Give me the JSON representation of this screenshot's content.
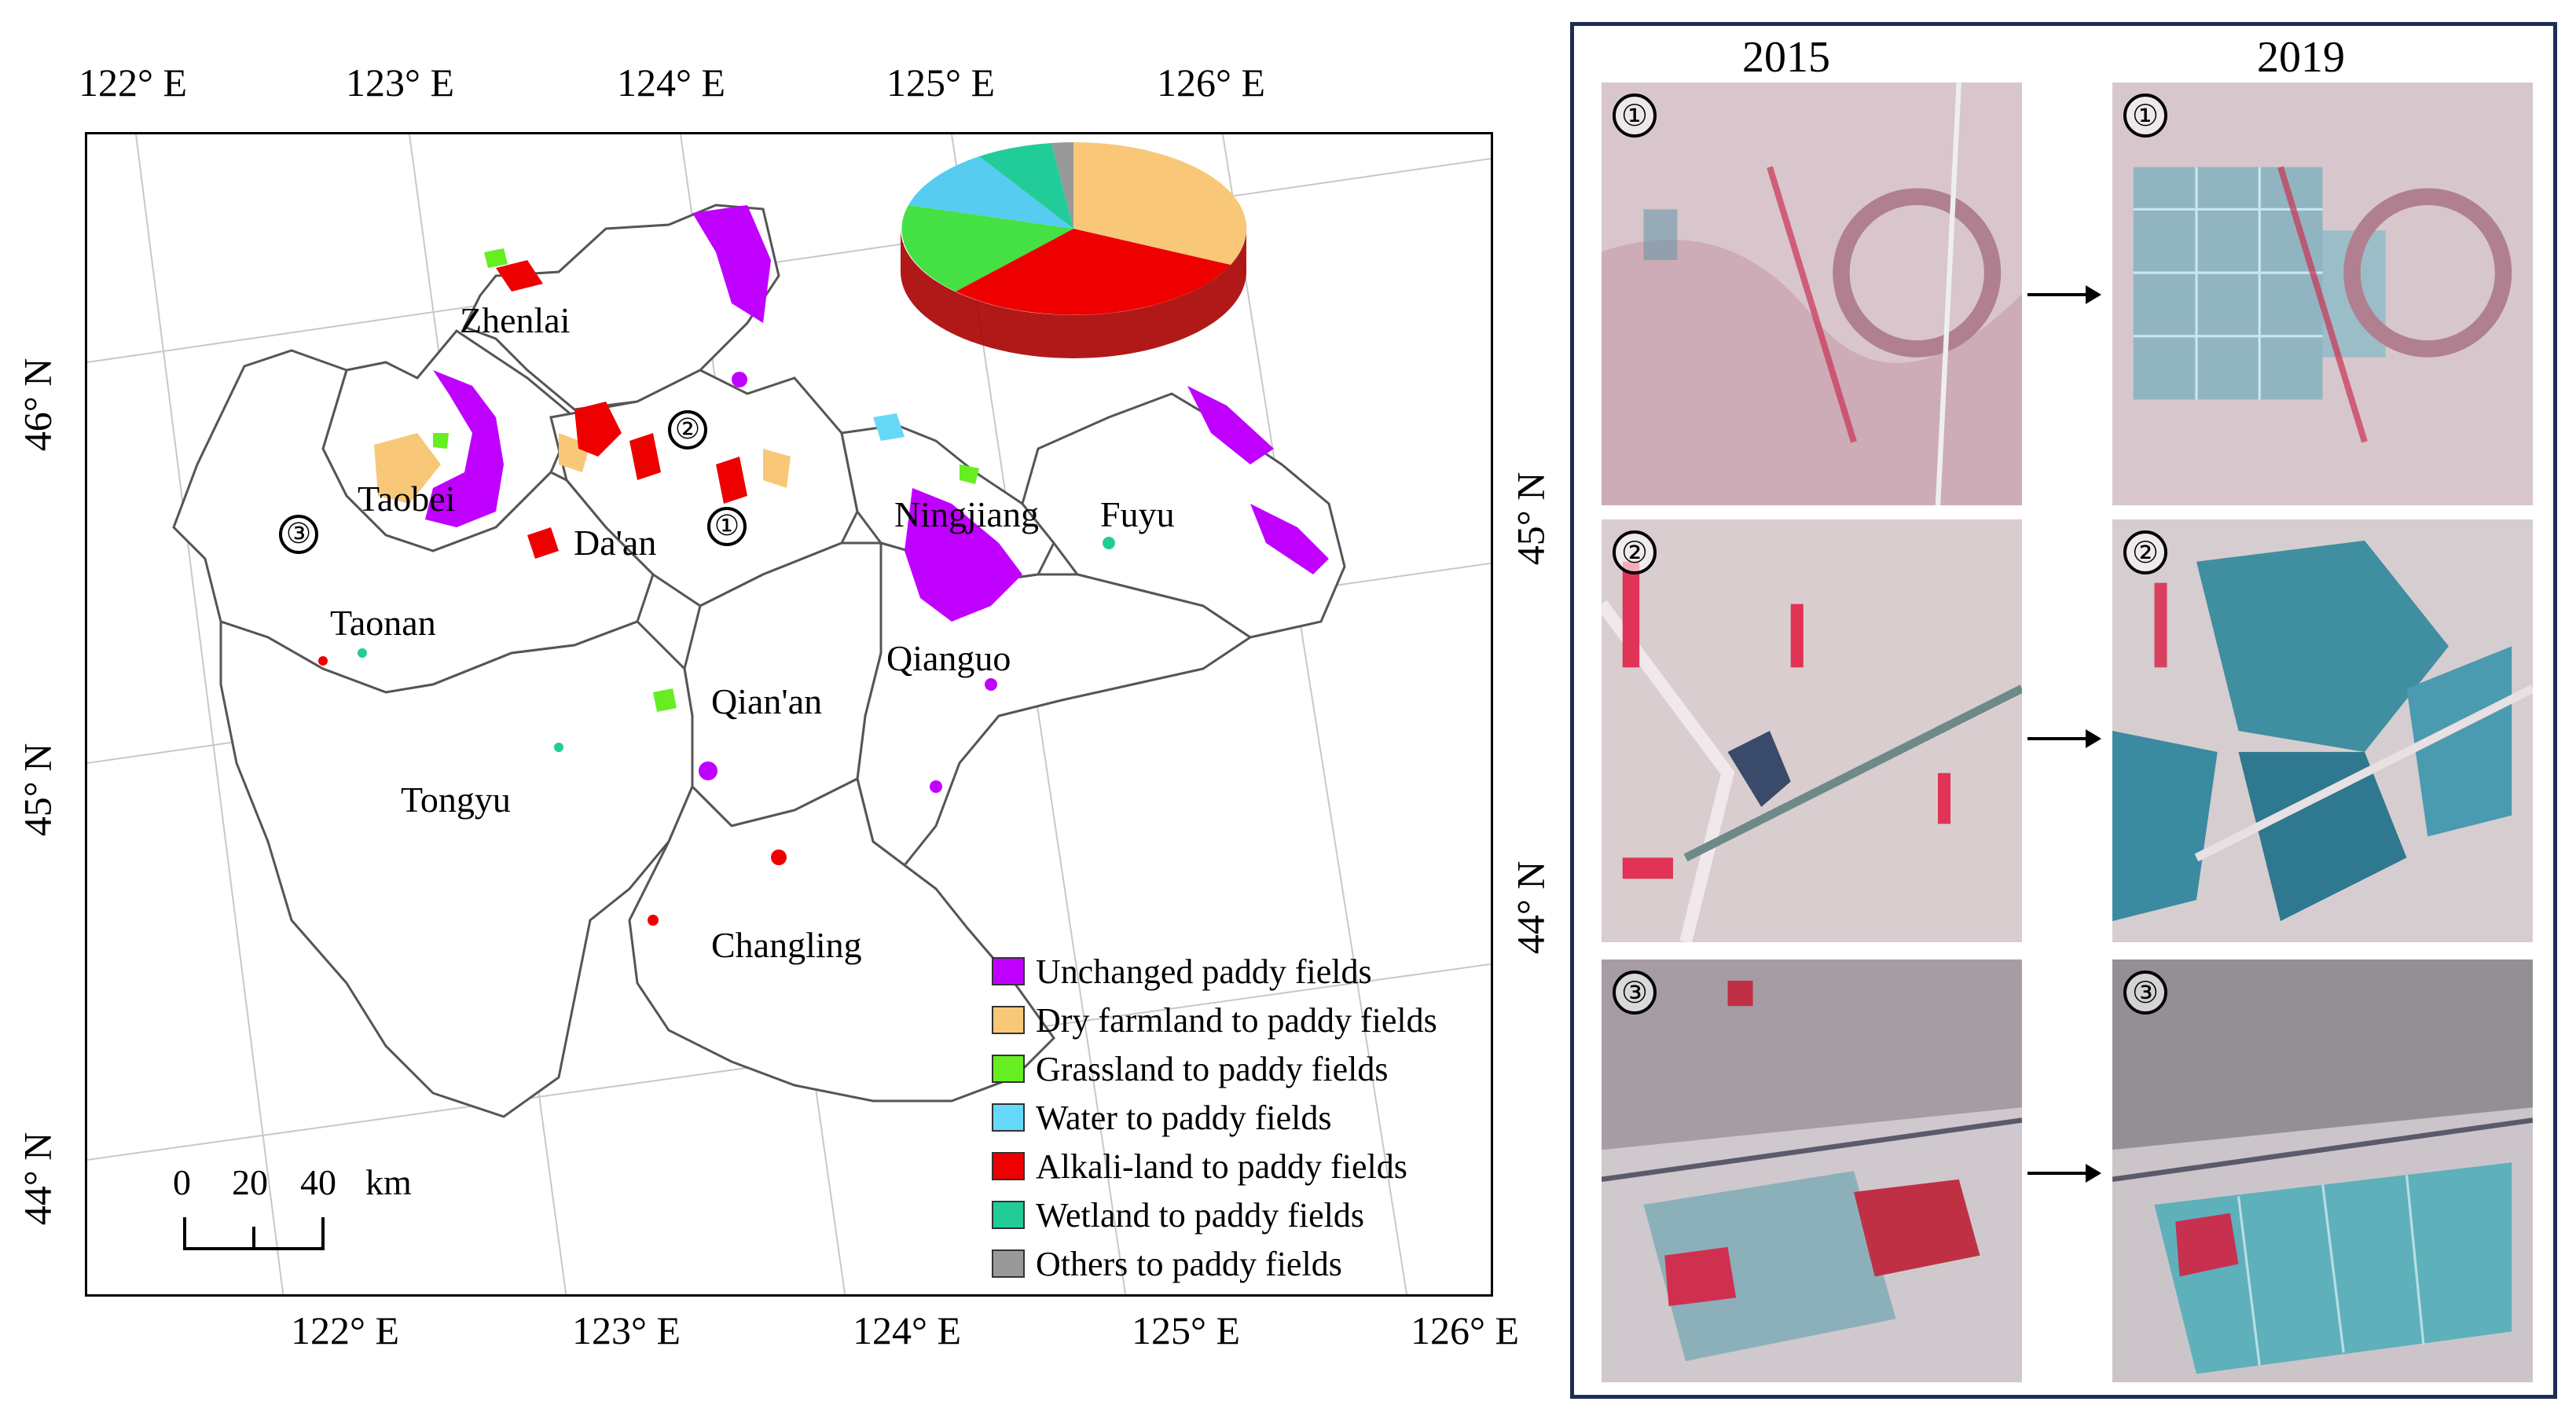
{
  "map": {
    "top_lon_labels": [
      "122° E",
      "123° E",
      "124° E",
      "125° E",
      "126° E"
    ],
    "bottom_lon_labels": [
      "122° E",
      "123° E",
      "124° E",
      "125° E",
      "126° E"
    ],
    "left_lat_labels": [
      "46° N",
      "45° N",
      "44° N"
    ],
    "right_lat_labels": [
      "45° N",
      "44° N"
    ],
    "regions": {
      "zhenlai": "Zhenlai",
      "taobei": "Taobei",
      "daan": "Da'an",
      "ningjiang": "Ningjiang",
      "fuyu": "Fuyu",
      "taonan": "Taonan",
      "qianguo": "Qianguo",
      "qianan": "Qian'an",
      "tongyu": "Tongyu",
      "changling": "Changling"
    },
    "site_markers": [
      "①",
      "②",
      "③"
    ],
    "scale_bar": {
      "ticks": [
        "0",
        "20",
        "40"
      ],
      "unit": "km"
    },
    "legend": [
      {
        "label": "Unchanged paddy fields",
        "color": "#c000ff"
      },
      {
        "label": "Dry farmland to paddy fields",
        "color": "#f8c878"
      },
      {
        "label": "Grassland to paddy fields",
        "color": "#66ee22"
      },
      {
        "label": "Water to paddy fields",
        "color": "#66d8f8"
      },
      {
        "label": "Alkali-land to paddy fields",
        "color": "#ee0000"
      },
      {
        "label": "Wetland to paddy fields",
        "color": "#22cc99"
      },
      {
        "label": "Others to paddy fields",
        "color": "#999999"
      }
    ],
    "pie_shares": [
      {
        "class": "Dry farmland to paddy fields",
        "share": 0.33
      },
      {
        "class": "Alkali-land to paddy fields",
        "share": 0.28
      },
      {
        "class": "Grassland to paddy fields",
        "share": 0.2
      },
      {
        "class": "Water to paddy fields",
        "share": 0.1
      },
      {
        "class": "Wetland to paddy fields",
        "share": 0.07
      },
      {
        "class": "Others to paddy fields",
        "share": 0.02
      }
    ]
  },
  "comparison": {
    "years": [
      "2015",
      "2019"
    ],
    "sites": [
      "①",
      "②",
      "③"
    ]
  }
}
